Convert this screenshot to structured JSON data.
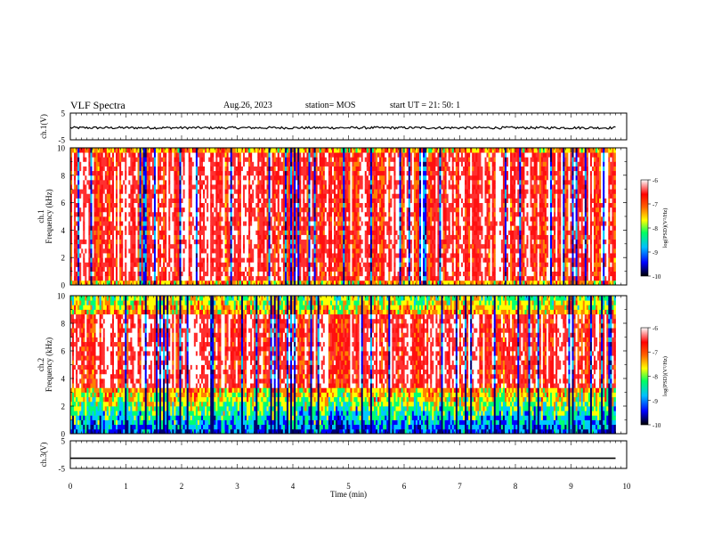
{
  "header": {
    "title": "VLF Spectra",
    "date": "Aug.26, 2023",
    "station": "station= MOS",
    "start": "start  UT =   21: 50: 1"
  },
  "chart_data": [
    {
      "type": "line",
      "name": "ch1-voltage",
      "ylabel": "ch.1(V)",
      "ylim": [
        -5,
        5
      ],
      "y_ticks": [
        "5",
        "-5"
      ],
      "xlim": [
        0,
        10
      ],
      "series": [
        {
          "x": [
            0,
            9.8
          ],
          "y": [
            -0.5,
            -0.5
          ],
          "style": "noisy"
        }
      ]
    },
    {
      "type": "heatmap",
      "name": "ch1-spectrogram",
      "ylabel": "ch.1 Frequency (kHz)",
      "ylim": [
        0,
        10
      ],
      "y_ticks": [
        "0",
        "2",
        "4",
        "6",
        "8",
        "10"
      ],
      "xlim": [
        0,
        10
      ],
      "data_xlim": [
        0,
        9.8
      ],
      "dominant_band_khz": [
        0.5,
        9.5
      ],
      "colorbar": {
        "label": "log(PSD)(V²/Hz)",
        "range": [
          -10,
          -6
        ],
        "ticks": [
          "-6",
          "-7",
          "-8",
          "-9",
          "-10"
        ]
      }
    },
    {
      "type": "heatmap",
      "name": "ch2-spectrogram",
      "ylabel": "ch.2 Frequency (kHz)",
      "ylim": [
        0,
        10
      ],
      "y_ticks": [
        "0",
        "2",
        "4",
        "6",
        "8",
        "10"
      ],
      "xlim": [
        0,
        10
      ],
      "data_xlim": [
        0,
        9.8
      ],
      "dominant_band_khz": [
        3.5,
        8.5
      ],
      "colorbar": {
        "label": "log(PSD)(V²/Hz)",
        "range": [
          -10,
          -6
        ],
        "ticks": [
          "-6",
          "-7",
          "-8",
          "-9",
          "-10"
        ]
      }
    },
    {
      "type": "line",
      "name": "ch3-voltage",
      "ylabel": "ch.3(V)",
      "ylim": [
        -5,
        5
      ],
      "y_ticks": [
        "5",
        "-5"
      ],
      "xlim": [
        0,
        10
      ],
      "series": [
        {
          "x": [
            0,
            9.8
          ],
          "y": [
            -1.3,
            -1.3
          ],
          "style": "flat"
        }
      ]
    }
  ],
  "x_axis": {
    "label": "Time  (min)",
    "ticks": [
      "0",
      "1",
      "2",
      "3",
      "4",
      "5",
      "6",
      "7",
      "8",
      "9",
      "10"
    ]
  },
  "colormap": [
    "#000080",
    "#0000ff",
    "#00bfff",
    "#00ff80",
    "#ffff00",
    "#ff8000",
    "#ff0000",
    "#ffffff"
  ]
}
